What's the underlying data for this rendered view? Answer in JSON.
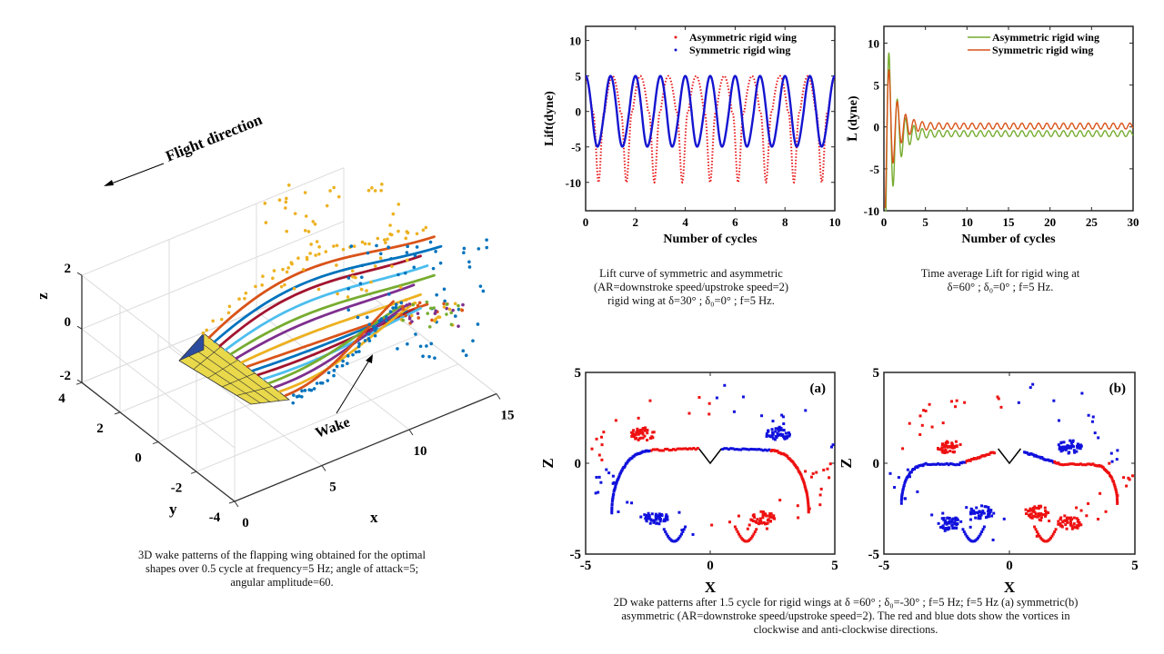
{
  "chart_data": [
    {
      "id": "wake3d",
      "type": "scatter",
      "title": "3D wake patterns",
      "xlabel": "x",
      "ylabel": "y",
      "zlabel": "z",
      "xlim": [
        0,
        15
      ],
      "ylim": [
        -4,
        4
      ],
      "zlim": [
        -2,
        2
      ],
      "xticks": [
        "0",
        "5",
        "10",
        "15"
      ],
      "yticks": [
        "-4",
        "-2",
        "0",
        "2",
        "4"
      ],
      "zticks": [
        "-2",
        "0",
        "2"
      ],
      "annotations": [
        "Flight direction",
        "Wake"
      ],
      "series_colors": [
        "#EDB120",
        "#D95319",
        "#0072BD",
        "#A2142F",
        "#4DBEEE",
        "#77AC30",
        "#7E2F8E",
        "#EDB120",
        "#D95319",
        "#0072BD",
        "#A2142F",
        "#4DBEEE",
        "#77AC30",
        "#7E2F8E",
        "#EDB120",
        "#D95319",
        "#0072BD"
      ],
      "caption": [
        "3D wake patterns of the flapping  wing obtained for the optimal",
        "shapes over 0.5 cycle at frequency=5 Hz; angle of attack=5;",
        "angular amplitude=60."
      ]
    },
    {
      "id": "lift",
      "type": "line",
      "xlabel": "Number of cycles",
      "ylabel": "Lift(dyne)",
      "xlim": [
        0,
        10
      ],
      "ylim": [
        -14,
        12
      ],
      "xticks": [
        "0",
        "2",
        "4",
        "6",
        "8",
        "10"
      ],
      "yticks": [
        "-10",
        "-5",
        "0",
        "5",
        "10"
      ],
      "legend_position": "top-right",
      "series": [
        {
          "name": "Asymmetric rigid wing",
          "color": "#E8191B",
          "style": "dotted",
          "max": 5,
          "min": -10,
          "period": 1.12
        },
        {
          "name": "Symmetric rigid wing",
          "color": "#1515D0",
          "style": "solid",
          "max": 5,
          "min": -5,
          "period": 1.0
        }
      ],
      "caption": [
        "Lift curve of symmetric and asymmetric",
        "(AR=downstroke speed/upstroke speed=2)",
        "rigid  wing at δ=30° ; δ₀=0° ; f=5 Hz."
      ]
    },
    {
      "id": "avglift",
      "type": "line",
      "xlabel": "Number of cycles",
      "ylabel": "L̄ (dyne)",
      "xlim": [
        0,
        30
      ],
      "ylim": [
        -10,
        12
      ],
      "xticks": [
        "0",
        "5",
        "10",
        "15",
        "20",
        "25",
        "30"
      ],
      "yticks": [
        "-10",
        "-5",
        "0",
        "5",
        "10"
      ],
      "legend_position": "top-right",
      "series": [
        {
          "name": "Asymmetric rigid wing",
          "color": "#77AC30",
          "steady_value": -0.8,
          "first_peak": 9.8
        },
        {
          "name": "Symmetric rigid wing",
          "color": "#D95319",
          "steady_value": 0.1,
          "first_peak": 6.7
        }
      ],
      "caption": [
        "Time average Lift for rigid wing at",
        "δ=60° ; δ₀=0° ; f=5 Hz."
      ]
    },
    {
      "id": "wake2d_a",
      "type": "scatter",
      "panel_label": "(a)",
      "xlabel": "X",
      "ylabel": "Z",
      "xlim": [
        -5,
        5
      ],
      "ylim": [
        -5,
        5
      ],
      "xticks": [
        "-5",
        "0",
        "5"
      ],
      "yticks": [
        "-5",
        "0",
        "5"
      ],
      "series": [
        {
          "name": "clockwise vortices",
          "color": "#EE1111"
        },
        {
          "name": "anti-clockwise vortices",
          "color": "#1111DD"
        }
      ],
      "vortex_clusters": [
        {
          "x": -2.7,
          "z": 1.6,
          "color": "red"
        },
        {
          "x": 2.7,
          "z": 1.6,
          "color": "blue"
        },
        {
          "x": -2.2,
          "z": -3.0,
          "color": "blue"
        },
        {
          "x": 2.1,
          "z": -3.0,
          "color": "red"
        }
      ]
    },
    {
      "id": "wake2d_b",
      "type": "scatter",
      "panel_label": "(b)",
      "xlabel": "X",
      "ylabel": "Z",
      "xlim": [
        -5,
        5
      ],
      "ylim": [
        -5,
        5
      ],
      "xticks": [
        "-5",
        "0",
        "5"
      ],
      "yticks": [
        "-5",
        "0",
        "5"
      ],
      "series": [
        {
          "name": "clockwise vortices",
          "color": "#EE1111"
        },
        {
          "name": "anti-clockwise vortices",
          "color": "#1111DD"
        }
      ],
      "vortex_clusters": [
        {
          "x": -2.4,
          "z": 0.9,
          "color": "red"
        },
        {
          "x": 2.4,
          "z": 0.9,
          "color": "blue"
        },
        {
          "x": -2.4,
          "z": -3.3,
          "color": "blue"
        },
        {
          "x": -1.1,
          "z": -2.7,
          "color": "blue"
        },
        {
          "x": 1.1,
          "z": -2.7,
          "color": "red"
        },
        {
          "x": 2.4,
          "z": -3.3,
          "color": "red"
        }
      ]
    }
  ],
  "captions": {
    "wake2d": [
      "2D wake patterns after 1.5 cycle for rigid  wings at δ =60° ; δ₀=-30° ; f=5 Hz; f=5 Hz (a) symmetric(b)",
      "asymmetric (AR=downstroke speed/upstroke speed=2). The red and blue dots show the vortices in",
      "clockwise and anti-clockwise directions."
    ]
  }
}
